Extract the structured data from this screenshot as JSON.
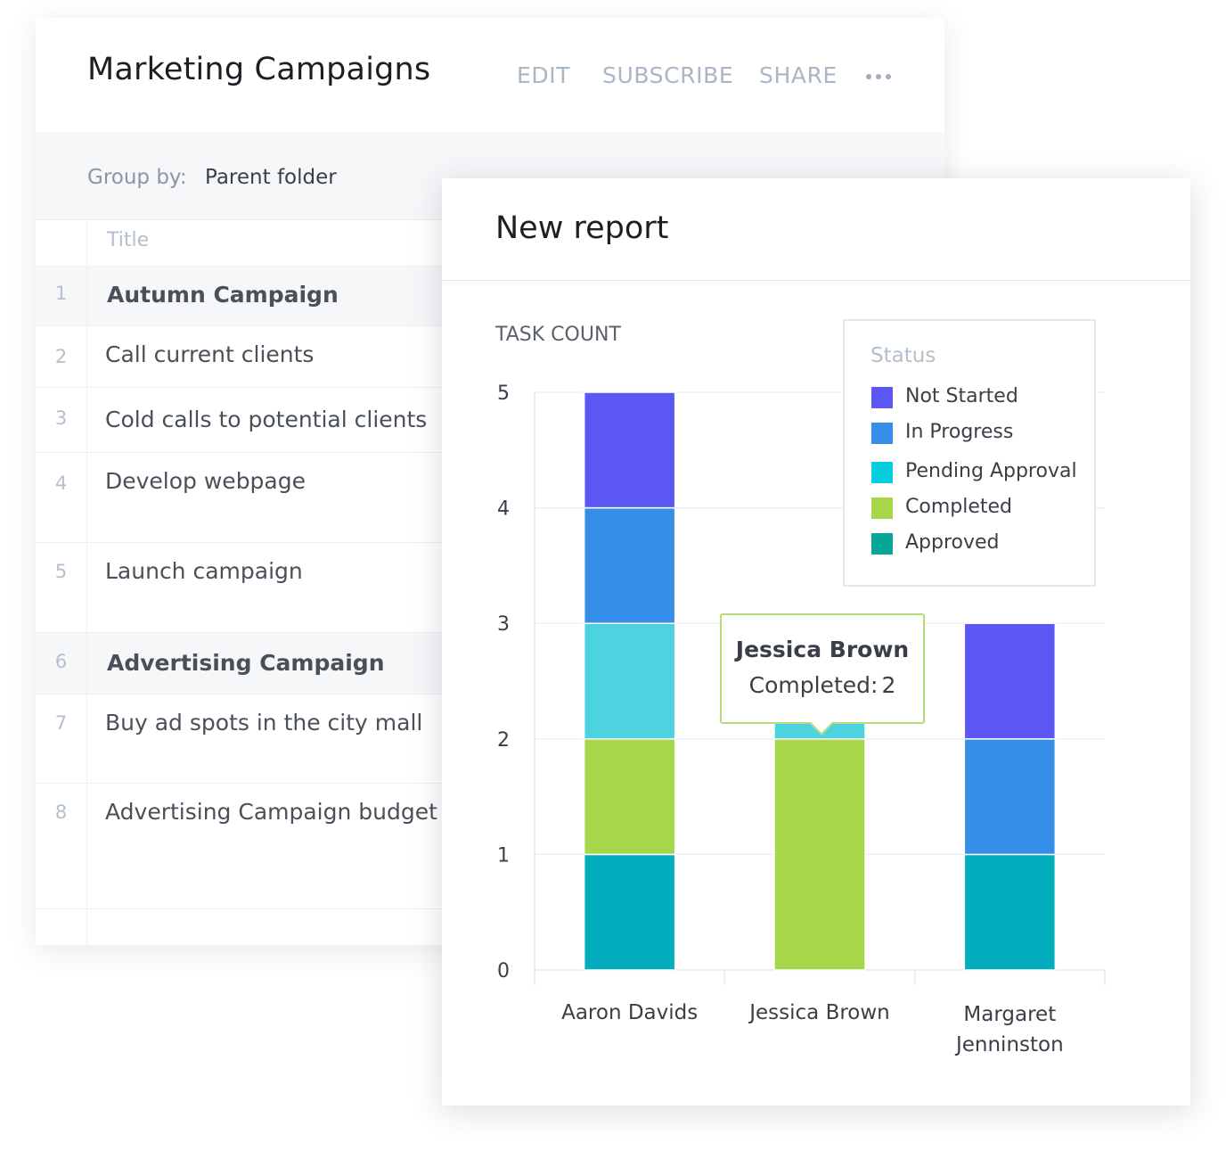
{
  "list_panel": {
    "title": "Marketing Campaigns",
    "actions": [
      {
        "label": "EDIT"
      },
      {
        "label": "SUBSCRIBE"
      },
      {
        "label": "SHARE"
      }
    ],
    "more_icon": "more-horizontal-icon",
    "group_by": {
      "label": "Group by:",
      "value": "Parent folder"
    },
    "column_title": "Title",
    "rows": [
      {
        "num": "1",
        "title": "Autumn Campaign",
        "group": true
      },
      {
        "num": "2",
        "title": "Call current clients",
        "group": false
      },
      {
        "num": "3",
        "title": "Cold calls to potential clients",
        "group": false
      },
      {
        "num": "4",
        "title": "Develop webpage",
        "group": false
      },
      {
        "num": "5",
        "title": "Launch campaign",
        "group": false
      },
      {
        "num": "6",
        "title": "Advertising Campaign",
        "group": true
      },
      {
        "num": "7",
        "title": "Buy ad spots in the city mall",
        "group": false
      },
      {
        "num": "8",
        "title": "Advertising Campaign budget",
        "group": false
      }
    ]
  },
  "report": {
    "title": "New report",
    "legend_title": "Status",
    "tooltip": {
      "name": "Jessica Brown",
      "series": "Completed",
      "separator": ":",
      "value": "2"
    }
  },
  "chart_data": {
    "type": "bar",
    "stacked": true,
    "ylabel": "TASK COUNT",
    "ylim": [
      0,
      5
    ],
    "yticks": [
      "0",
      "1",
      "2",
      "3",
      "4",
      "5"
    ],
    "grid": true,
    "legend_position": "top-right",
    "categories": [
      "Aaron Davids",
      "Jessica Brown",
      "Margaret Jenninston"
    ],
    "series": [
      {
        "name": "Not Started",
        "legend_color": "#5b57f2",
        "bar_color": "#5b57f2",
        "values": [
          1,
          0,
          1
        ]
      },
      {
        "name": "In Progress",
        "legend_color": "#358ee8",
        "bar_color": "#358ee8",
        "values": [
          1,
          0,
          1
        ]
      },
      {
        "name": "Pending Approval",
        "legend_color": "#07cde0",
        "bar_color": "#4dd3df",
        "values": [
          1,
          0.5,
          0
        ]
      },
      {
        "name": "Completed",
        "legend_color": "#a8d64b",
        "bar_color": "#a8d64b",
        "values": [
          1,
          2,
          0
        ]
      },
      {
        "name": "Approved",
        "legend_color": "#07a695",
        "bar_color": "#02adbe",
        "values": [
          1,
          0,
          1
        ]
      }
    ],
    "stack_order_bottom_to_top": [
      "Approved",
      "Completed",
      "Pending Approval",
      "In Progress",
      "Not Started"
    ]
  }
}
